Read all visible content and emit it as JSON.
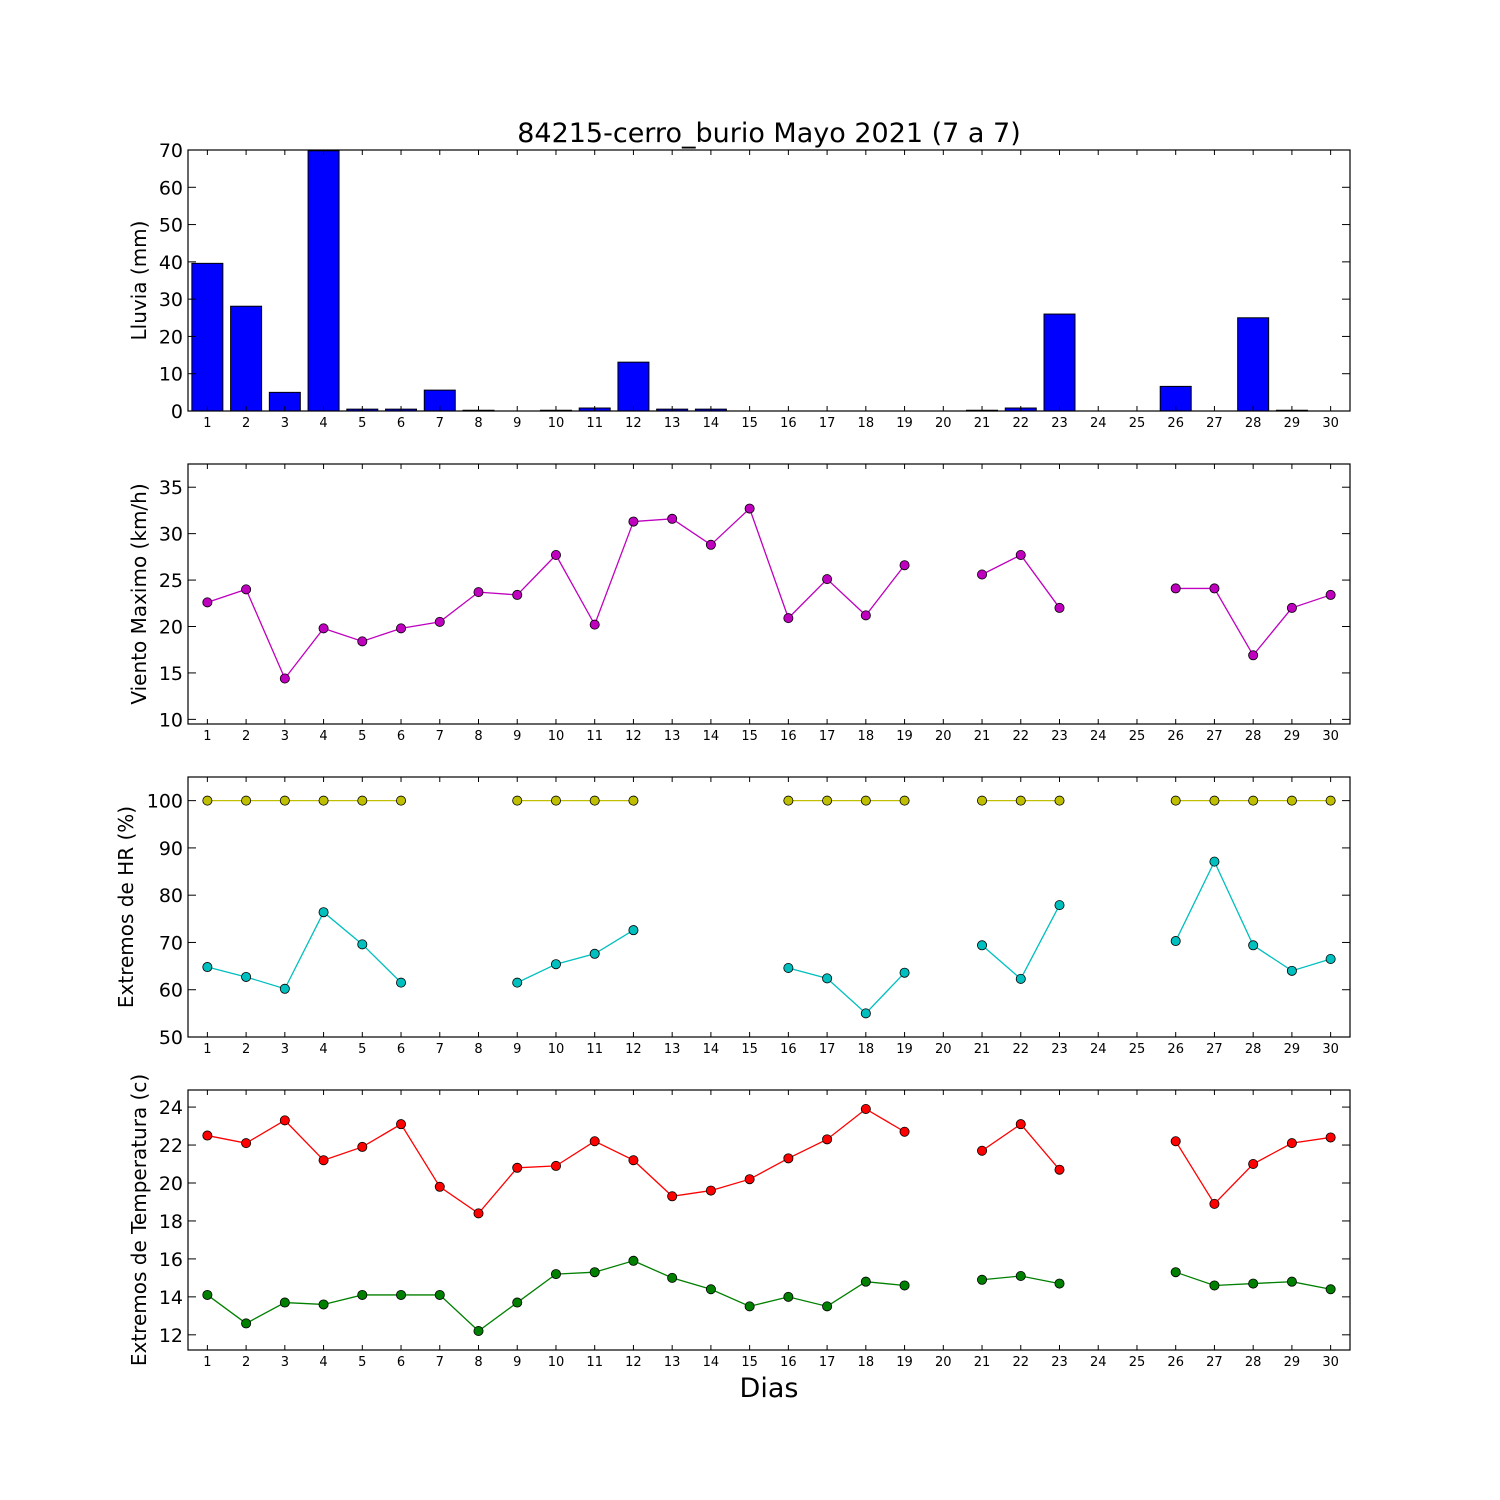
{
  "title": "84215-cerro_burio Mayo 2021  (7 a 7)",
  "xlabel": "Dias",
  "days": [
    1,
    2,
    3,
    4,
    5,
    6,
    7,
    8,
    9,
    10,
    11,
    12,
    13,
    14,
    15,
    16,
    17,
    18,
    19,
    20,
    21,
    22,
    23,
    24,
    25,
    26,
    27,
    28,
    29,
    30
  ],
  "chart_data": [
    {
      "type": "bar",
      "ylabel": "Lluvia (mm)",
      "ylim": [
        0,
        70
      ],
      "yticks": [
        0,
        10,
        20,
        30,
        40,
        50,
        60,
        70
      ],
      "series": [
        {
          "color": "#0000ff",
          "values": [
            39.6,
            28.1,
            5.0,
            69.8,
            0.5,
            0.5,
            5.6,
            0.2,
            0,
            0.2,
            0.8,
            13.1,
            0.5,
            0.5,
            0,
            0,
            0,
            0,
            0,
            0,
            0.2,
            0.8,
            26.0,
            0,
            0,
            6.6,
            0,
            25.0,
            0.2,
            0
          ]
        }
      ]
    },
    {
      "type": "line",
      "ylabel": "Viento Maximo (km/h)",
      "ylim": [
        9.5,
        37.5
      ],
      "yticks": [
        10,
        15,
        20,
        25,
        30,
        35
      ],
      "series": [
        {
          "color": "#bf00bf",
          "values": [
            22.6,
            24.0,
            14.4,
            19.8,
            18.4,
            19.8,
            20.5,
            23.7,
            23.4,
            27.7,
            20.2,
            31.3,
            31.6,
            28.8,
            32.7,
            20.9,
            25.1,
            21.2,
            26.6,
            null,
            25.6,
            27.7,
            22.0,
            null,
            null,
            24.1,
            24.1,
            16.9,
            22.0,
            23.4
          ]
        }
      ]
    },
    {
      "type": "line",
      "ylabel": "Extremos de HR (%)",
      "ylim": [
        50,
        105
      ],
      "yticks": [
        50,
        60,
        70,
        80,
        90,
        100
      ],
      "series": [
        {
          "color": "#bfbf00",
          "values": [
            100,
            100,
            100,
            100,
            100,
            100,
            null,
            null,
            100,
            100,
            100,
            100,
            null,
            null,
            null,
            100,
            100,
            100,
            100,
            null,
            100,
            100,
            100,
            null,
            null,
            100,
            100,
            100,
            100,
            100
          ]
        },
        {
          "color": "#00bfbf",
          "values": [
            64.8,
            62.7,
            60.2,
            76.4,
            69.6,
            61.5,
            null,
            null,
            61.5,
            65.4,
            67.6,
            72.6,
            null,
            null,
            null,
            64.6,
            62.4,
            55.0,
            63.6,
            null,
            69.4,
            62.3,
            77.9,
            null,
            null,
            70.3,
            87.1,
            69.4,
            64.0,
            66.5
          ]
        }
      ]
    },
    {
      "type": "line",
      "ylabel": "Extremos de Temperatura (c)",
      "ylim": [
        11.2,
        24.9
      ],
      "yticks": [
        12,
        14,
        16,
        18,
        20,
        22,
        24
      ],
      "series": [
        {
          "color": "#ff0000",
          "values": [
            22.5,
            22.1,
            23.3,
            21.2,
            21.9,
            23.1,
            19.8,
            18.4,
            20.8,
            20.9,
            22.2,
            21.2,
            19.3,
            19.6,
            20.2,
            21.3,
            22.3,
            23.9,
            22.7,
            null,
            21.7,
            23.1,
            20.7,
            null,
            null,
            22.2,
            18.9,
            21.0,
            22.1,
            22.4
          ]
        },
        {
          "color": "#008000",
          "values": [
            14.1,
            12.6,
            13.7,
            13.6,
            14.1,
            14.1,
            14.1,
            12.2,
            13.7,
            15.2,
            15.3,
            15.9,
            15.0,
            14.4,
            13.5,
            14.0,
            13.5,
            14.8,
            14.6,
            null,
            14.9,
            15.1,
            14.7,
            null,
            null,
            15.3,
            14.6,
            14.7,
            14.8,
            14.4
          ]
        }
      ]
    }
  ]
}
